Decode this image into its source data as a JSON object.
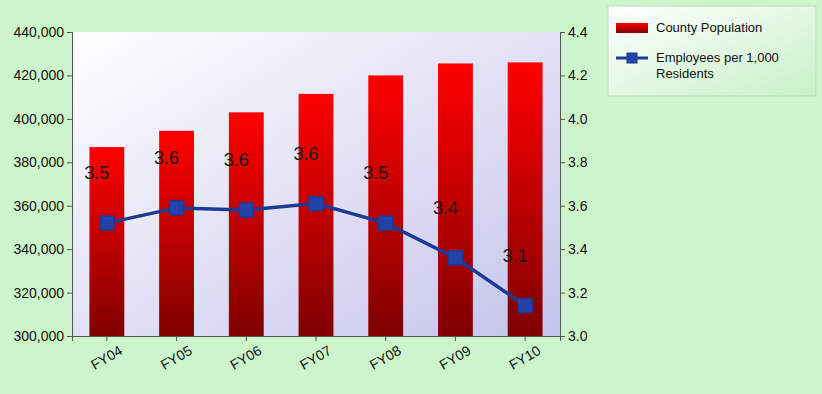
{
  "chart_data": {
    "type": "bar",
    "categories": [
      "FY04",
      "FY05",
      "FY06",
      "FY07",
      "FY08",
      "FY09",
      "FY10"
    ],
    "series": [
      {
        "name": "County Population",
        "type": "bar",
        "color": "#e00000",
        "values": [
          387000,
          394500,
          403000,
          411500,
          420000,
          425500,
          426000
        ]
      },
      {
        "name": "Employees per 1,000 Residents",
        "type": "line",
        "axis": "y2",
        "color": "#1f3a93",
        "marker": "square",
        "line_style": "solid",
        "data_labels": true,
        "values": [
          3.52,
          3.59,
          3.58,
          3.61,
          3.52,
          3.36,
          3.14
        ],
        "value_labels": [
          "3.5",
          "3.6",
          "3.6",
          "3.6",
          "3.5",
          "3.4",
          "3.1"
        ]
      }
    ],
    "ylim": [
      300000,
      440000
    ],
    "yticks": [
      {
        "value": 300000,
        "label": "300,000"
      },
      {
        "value": 320000,
        "label": "320,000"
      },
      {
        "value": 340000,
        "label": "340,000"
      },
      {
        "value": 360000,
        "label": "360,000"
      },
      {
        "value": 380000,
        "label": "380,000"
      },
      {
        "value": 400000,
        "label": "400,000"
      },
      {
        "value": 420000,
        "label": "420,000"
      },
      {
        "value": 440000,
        "label": "440,000"
      }
    ],
    "y2lim": [
      3.0,
      4.4
    ],
    "y2ticks": [
      {
        "value": 3.0,
        "label": "3.0"
      },
      3.2,
      3.4,
      3.6,
      3.8,
      {
        "value": 4.0,
        "label": "4.0"
      },
      4.2,
      4.4
    ],
    "grid": false,
    "legend": "top-right"
  }
}
